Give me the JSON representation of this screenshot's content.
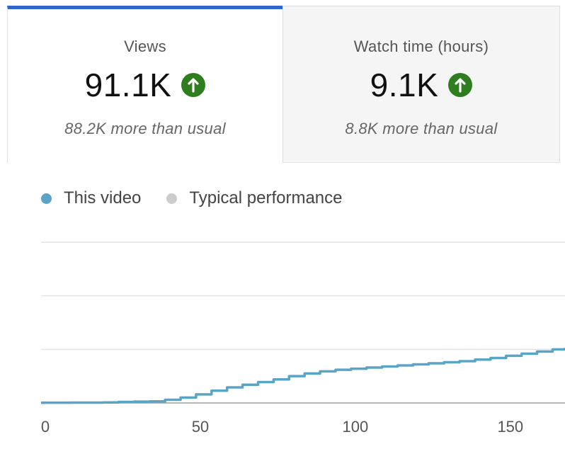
{
  "tabs": [
    {
      "label": "Views",
      "value": "91.1K",
      "comparison": "88.2K more than usual",
      "selected": true,
      "trend_icon": "arrow-up-icon"
    },
    {
      "label": "Watch time (hours)",
      "value": "9.1K",
      "comparison": "8.8K more than usual",
      "selected": false,
      "trend_icon": "arrow-up-icon"
    }
  ],
  "colors": {
    "accent": "#3366cc",
    "trend_up": "#2e7d1e",
    "series_this_video": "#5aa5c6",
    "series_typical": "#cccccc"
  },
  "legend": [
    {
      "label": "This video",
      "color": "#5aa5c6"
    },
    {
      "label": "Typical performance",
      "color": "#cccccc"
    }
  ],
  "chart_data": {
    "type": "line",
    "x": [
      0,
      10,
      20,
      25,
      30,
      35,
      40,
      45,
      50,
      55,
      60,
      65,
      70,
      75,
      80,
      85,
      90,
      95,
      100,
      105,
      110,
      115,
      120,
      125,
      130,
      135,
      140,
      145,
      150,
      155,
      160,
      165,
      169
    ],
    "series": [
      {
        "name": "This video",
        "color": "#5aa5c6",
        "values": [
          0.05,
          0.07,
          0.1,
          0.2,
          0.25,
          0.3,
          0.6,
          1.0,
          1.6,
          2.3,
          2.9,
          3.4,
          3.9,
          4.4,
          5.0,
          5.5,
          5.9,
          6.2,
          6.4,
          6.6,
          6.8,
          7.0,
          7.2,
          7.4,
          7.6,
          7.8,
          8.1,
          8.4,
          8.8,
          9.2,
          9.6,
          10.0,
          10.3
        ]
      }
    ],
    "xticks": [
      0,
      50,
      100,
      150
    ],
    "xlim": [
      0,
      169
    ],
    "ylim": [
      0,
      30
    ],
    "grid": true,
    "legend_position": "top-left"
  }
}
